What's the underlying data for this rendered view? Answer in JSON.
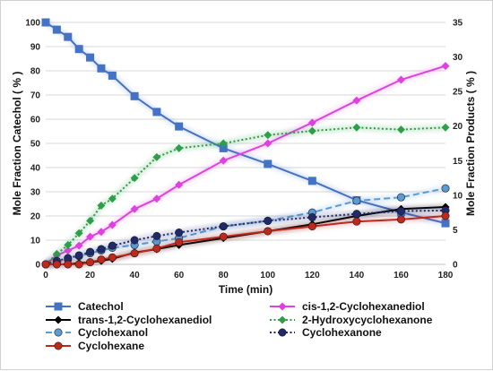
{
  "chart_data": {
    "type": "line",
    "xlabel": "Time (min)",
    "ylabel_left": "Mole Fraction Catechol ( % )",
    "ylabel_right": "Mole Fraction Products ( % )",
    "xlim": [
      0,
      180
    ],
    "ylim_left": [
      0,
      100
    ],
    "ylim_right": [
      0,
      35
    ],
    "x_ticks": [
      "0",
      "20",
      "40",
      "60",
      "80",
      "100",
      "120",
      "140",
      "160",
      "180"
    ],
    "y_ticks_left": [
      "0",
      "10",
      "20",
      "30",
      "40",
      "50",
      "60",
      "70",
      "80",
      "90",
      "100"
    ],
    "y_ticks_right": [
      "0",
      "5",
      "10",
      "15",
      "20",
      "25",
      "30",
      "35"
    ],
    "grid": "horizontal",
    "legend_position": "bottom",
    "series": [
      {
        "name": "Catechol",
        "axis": "left",
        "color": "#4472C4",
        "marker": "square",
        "dash": "solid",
        "x": [
          0,
          5,
          10,
          15,
          20,
          25,
          30,
          40,
          50,
          60,
          80,
          100,
          120,
          140,
          160,
          180
        ],
        "y": [
          100,
          97,
          94,
          89,
          85.5,
          81,
          78,
          69.5,
          63,
          57,
          48,
          41.5,
          34.5,
          26.5,
          21.5,
          17
        ]
      },
      {
        "name": "cis-1,2-Cyclohexanediol",
        "axis": "right",
        "color": "#E040E0",
        "marker": "diamond",
        "dash": "solid",
        "x": [
          0,
          5,
          10,
          15,
          20,
          25,
          30,
          40,
          50,
          60,
          80,
          100,
          120,
          140,
          160,
          180
        ],
        "y": [
          0,
          1.3,
          2,
          2.7,
          4,
          4.7,
          5.7,
          8,
          9.5,
          11.5,
          15,
          17.5,
          20.5,
          23.7,
          26.7,
          28.7
        ]
      },
      {
        "name": "trans-1,2-Cyclohexanediol",
        "axis": "right",
        "color": "#000000",
        "marker": "diamond",
        "dash": "solid",
        "x": [
          0,
          5,
          10,
          15,
          20,
          25,
          30,
          40,
          50,
          60,
          80,
          100,
          120,
          140,
          160,
          180
        ],
        "y": [
          0,
          0,
          0,
          0.2,
          0.3,
          0.5,
          0.8,
          1.7,
          2.2,
          2.8,
          3.8,
          4.8,
          5.8,
          7,
          8,
          8.3
        ]
      },
      {
        "name": "2-Hydroxycyclohexanone",
        "axis": "right",
        "color": "#2E9E48",
        "marker": "diamond",
        "dash": "dotted",
        "x": [
          0,
          5,
          10,
          15,
          20,
          25,
          30,
          40,
          50,
          60,
          80,
          100,
          120,
          140,
          160,
          180
        ],
        "y": [
          0,
          1.5,
          2.8,
          4.5,
          6.3,
          8.5,
          9.5,
          12.5,
          15.5,
          16.8,
          17.5,
          18.7,
          19.3,
          19.8,
          19.5,
          19.8
        ]
      },
      {
        "name": "Cyclohexanol",
        "axis": "right",
        "color": "#5B9BD5",
        "marker": "circle",
        "dash": "dashed",
        "x": [
          0,
          5,
          10,
          15,
          20,
          25,
          30,
          40,
          50,
          60,
          80,
          100,
          120,
          140,
          160,
          180
        ],
        "y": [
          0,
          0.3,
          0.7,
          1.2,
          1.6,
          2,
          2.4,
          2.8,
          3.3,
          3.8,
          5.5,
          6.3,
          7.5,
          9.2,
          9.7,
          11
        ]
      },
      {
        "name": "Cyclohexanone",
        "axis": "right",
        "color": "#1F2A6B",
        "marker": "circle",
        "dash": "dotted",
        "x": [
          0,
          5,
          10,
          15,
          20,
          25,
          30,
          40,
          50,
          60,
          80,
          100,
          120,
          140,
          160,
          180
        ],
        "y": [
          0,
          0.5,
          0.9,
          1.3,
          1.8,
          2.2,
          2.7,
          3.5,
          4.1,
          4.6,
          5.5,
          6.3,
          6.8,
          7.3,
          7.7,
          7.8
        ]
      },
      {
        "name": "Cyclohexane",
        "axis": "right",
        "color": "#C0281C",
        "marker": "circle",
        "dash": "solid",
        "x": [
          0,
          5,
          10,
          15,
          20,
          25,
          30,
          40,
          50,
          60,
          80,
          100,
          120,
          140,
          160,
          180
        ],
        "y": [
          0,
          0,
          0,
          0,
          0.3,
          0.7,
          1,
          1.6,
          2.3,
          3.2,
          4,
          4.8,
          5.5,
          6.2,
          6.5,
          7
        ]
      }
    ]
  }
}
